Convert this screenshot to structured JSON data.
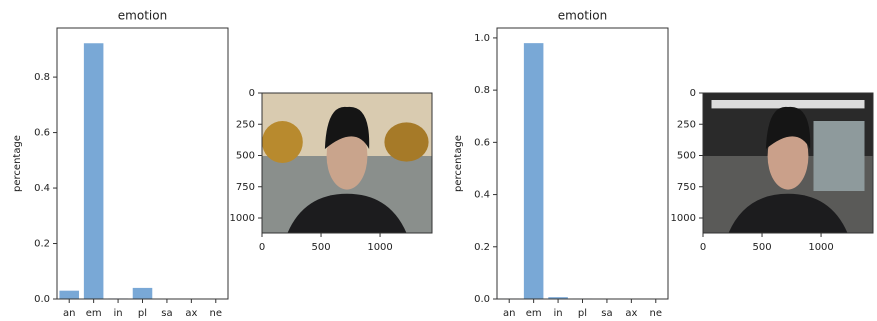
{
  "chart_data": [
    {
      "type": "bar",
      "title": "emotion",
      "ylabel": "percentage",
      "categories": [
        "an",
        "em",
        "in",
        "pl",
        "sa",
        "ax",
        "ne"
      ],
      "values": [
        0.03,
        0.922,
        0.002,
        0.04,
        0.001,
        0.001,
        0.001
      ],
      "color": "#79a8d6",
      "ylim": [
        0,
        0.977
      ],
      "yticks": [
        {
          "value": 0,
          "label": "0.0"
        },
        0.2,
        0.4,
        0.6,
        0.8
      ],
      "grid": false
    },
    {
      "type": "image",
      "xlim": [
        0,
        1440
      ],
      "ylim": [
        1120,
        0
      ],
      "xticks": [
        0,
        500,
        1000
      ],
      "yticks": [
        0,
        250,
        500,
        750,
        1000
      ],
      "scene": "outdoor"
    },
    {
      "type": "bar",
      "title": "emotion",
      "ylabel": "percentage",
      "categories": [
        "an",
        "em",
        "in",
        "pl",
        "sa",
        "ax",
        "ne"
      ],
      "values": [
        0.002,
        0.98,
        0.007,
        0.002,
        0.001,
        0.001,
        0.001
      ],
      "color": "#79a8d6",
      "ylim": [
        0,
        1.038
      ],
      "yticks": [
        {
          "value": 0,
          "label": "0.0"
        },
        0.2,
        0.4,
        0.6,
        0.8,
        {
          "value": 1,
          "label": "1.0"
        }
      ],
      "grid": false
    },
    {
      "type": "image",
      "xlim": [
        0,
        1440
      ],
      "ylim": [
        1120,
        0
      ],
      "xticks": [
        0,
        500,
        1000
      ],
      "yticks": [
        0,
        250,
        500,
        750,
        1000
      ],
      "scene": "night"
    }
  ]
}
